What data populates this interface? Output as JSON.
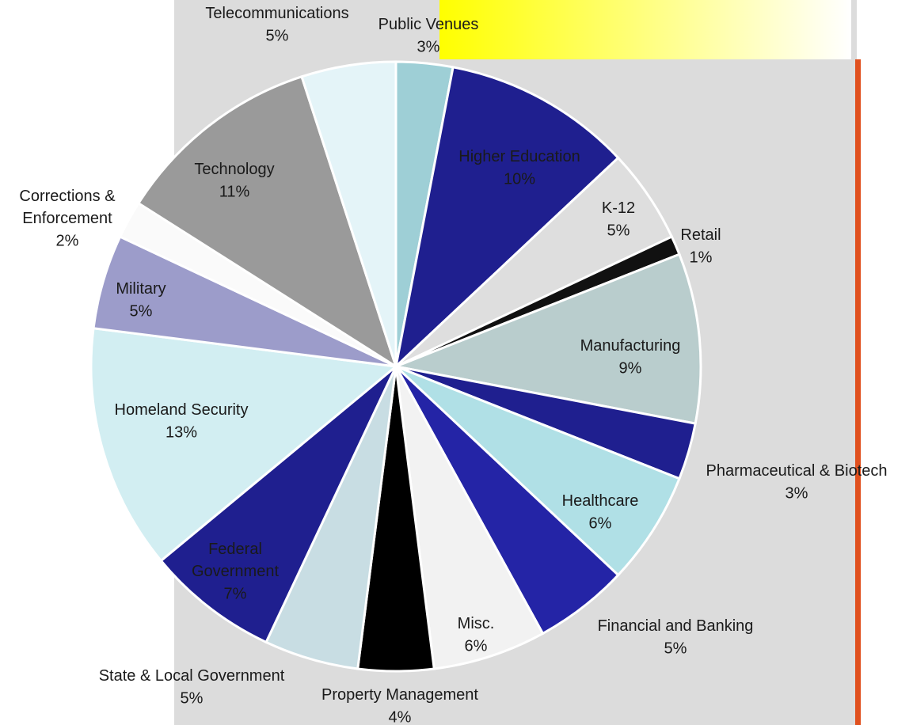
{
  "chart_data": {
    "type": "pie",
    "categories": [
      "Public Venues",
      "Higher Education",
      "K-12",
      "Retail",
      "Manufacturing",
      "Pharmaceutical & Biotech",
      "Healthcare",
      "Financial and Banking",
      "Misc.",
      "Property Management",
      "State & Local Government",
      "Federal\nGovernment",
      "Homeland Security",
      "Military",
      "Corrections &\nEnforcement",
      "Technology",
      "Telecommunications"
    ],
    "values": [
      3,
      10,
      5,
      1,
      9,
      3,
      6,
      5,
      6,
      4,
      5,
      7,
      13,
      5,
      2,
      11,
      5
    ],
    "value_labels": [
      "3%",
      "10%",
      "5%",
      "1%",
      "9%",
      "3%",
      "6%",
      "5%",
      "6%",
      "4%",
      "5%",
      "7%",
      "13%",
      "5%",
      "2%",
      "11%",
      "5%"
    ],
    "colors": [
      "#9ecfd6",
      "#1f1f8f",
      "#dedede",
      "#111111",
      "#b9cdcd",
      "#1f1f8f",
      "#b0e0e6",
      "#2424a6",
      "#f2f2f2",
      "#000000",
      "#c8dde3",
      "#1f1f8f",
      "#d2eef2",
      "#9c9cca",
      "#fafafa",
      "#9a9a9a",
      "#e4f4f8"
    ]
  }
}
